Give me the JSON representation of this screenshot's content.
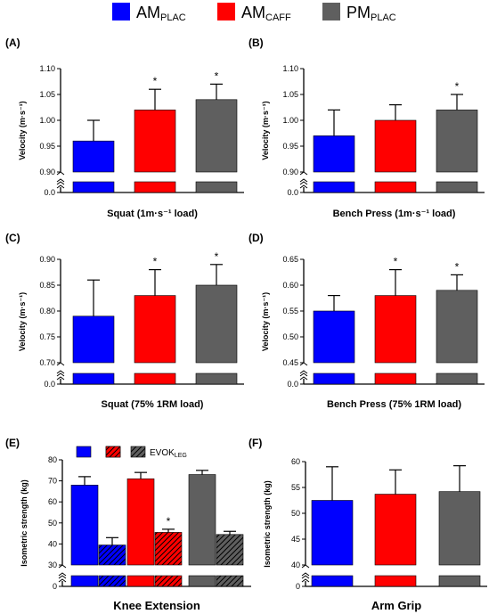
{
  "legend": {
    "items": [
      {
        "base": "AM",
        "sub": "PLAC",
        "color": "#0000ff"
      },
      {
        "base": "AM",
        "sub": "CAFF",
        "color": "#ff0000"
      },
      {
        "base": "PM",
        "sub": "PLAC",
        "color": "#5f5f5f"
      }
    ]
  },
  "colors": {
    "blue": "#0000ff",
    "red": "#ff0000",
    "gray": "#5f5f5f"
  },
  "chart_data": [
    {
      "panel": "(A)",
      "type": "bar",
      "broken_axis": true,
      "categories": [
        "AM PLAC",
        "AM CAFF",
        "PM PLAC"
      ],
      "values": [
        0.96,
        1.02,
        1.04
      ],
      "errors": [
        0.04,
        0.04,
        0.03
      ],
      "significant": [
        false,
        true,
        true
      ],
      "ylabel": "Velocity (m·s⁻¹)",
      "xlabel": "Squat  (1m·s⁻¹ load)",
      "ylim": [
        0.9,
        1.1
      ],
      "yticks": [
        "0.90",
        "0.95",
        "1.00",
        "1.05",
        "1.10"
      ],
      "break_tick": "0.0"
    },
    {
      "panel": "(B)",
      "type": "bar",
      "broken_axis": true,
      "categories": [
        "AM PLAC",
        "AM CAFF",
        "PM PLAC"
      ],
      "values": [
        0.97,
        1.0,
        1.02
      ],
      "errors": [
        0.05,
        0.03,
        0.03
      ],
      "significant": [
        false,
        false,
        true
      ],
      "ylabel": "Velocity (m·s⁻¹)",
      "xlabel": "Bench Press (1m·s⁻¹ load)",
      "ylim": [
        0.9,
        1.1
      ],
      "yticks": [
        "0.90",
        "0.95",
        "1.00",
        "1.05",
        "1.10"
      ],
      "break_tick": "0.0"
    },
    {
      "panel": "(C)",
      "type": "bar",
      "broken_axis": true,
      "categories": [
        "AM PLAC",
        "AM CAFF",
        "PM PLAC"
      ],
      "values": [
        0.79,
        0.83,
        0.85
      ],
      "errors": [
        0.07,
        0.05,
        0.04
      ],
      "significant": [
        false,
        true,
        true
      ],
      "ylabel": "Velocity (m·s⁻¹)",
      "xlabel": "Squat (75% 1RM load)",
      "ylim": [
        0.7,
        0.9
      ],
      "yticks": [
        "0.70",
        "0.75",
        "0.80",
        "0.85",
        "0.90"
      ],
      "break_tick": "0.0"
    },
    {
      "panel": "(D)",
      "type": "bar",
      "broken_axis": true,
      "categories": [
        "AM PLAC",
        "AM CAFF",
        "PM PLAC"
      ],
      "values": [
        0.55,
        0.58,
        0.59
      ],
      "errors": [
        0.03,
        0.05,
        0.03
      ],
      "significant": [
        false,
        true,
        true
      ],
      "ylabel": "Velocity (m·s⁻¹)",
      "xlabel": "Bench Press  (75% 1RM load)",
      "ylim": [
        0.45,
        0.65
      ],
      "yticks": [
        "0.45",
        "0.50",
        "0.55",
        "0.60",
        "0.65"
      ],
      "break_tick": "0.0"
    },
    {
      "panel": "(E)",
      "type": "bar",
      "broken_axis": true,
      "categories": [
        "AM PLAC",
        "AM CAFF",
        "PM PLAC"
      ],
      "series": [
        {
          "values": [
            68,
            71,
            73
          ],
          "errors": [
            4,
            3,
            2
          ],
          "significant": [
            false,
            false,
            false
          ]
        },
        {
          "name": "EVOK LEG",
          "hatched": true,
          "values": [
            39.5,
            45.5,
            44.5
          ],
          "errors": [
            3.5,
            1.5,
            1.5
          ],
          "significant": [
            false,
            true,
            false
          ]
        }
      ],
      "legend_label": {
        "base": "EVOK",
        "sub": "LEG"
      },
      "ylabel": "Isometric strength (kg)",
      "xlabel": "Knee Extension",
      "ylim": [
        30,
        80
      ],
      "yticks": [
        "30",
        "40",
        "50",
        "60",
        "70",
        "80"
      ],
      "break_tick": "0"
    },
    {
      "panel": "(F)",
      "type": "bar",
      "broken_axis": true,
      "categories": [
        "AM PLAC",
        "AM CAFF",
        "PM PLAC"
      ],
      "values": [
        52.5,
        53.7,
        54.2
      ],
      "errors": [
        6.5,
        4.7,
        5.0
      ],
      "significant": [
        false,
        false,
        false
      ],
      "ylabel": "Isometric strength (kg)",
      "xlabel": "Arm Grip",
      "ylim": [
        40,
        60
      ],
      "yticks": [
        "40",
        "45",
        "50",
        "55",
        "60"
      ],
      "break_tick": "0"
    }
  ]
}
